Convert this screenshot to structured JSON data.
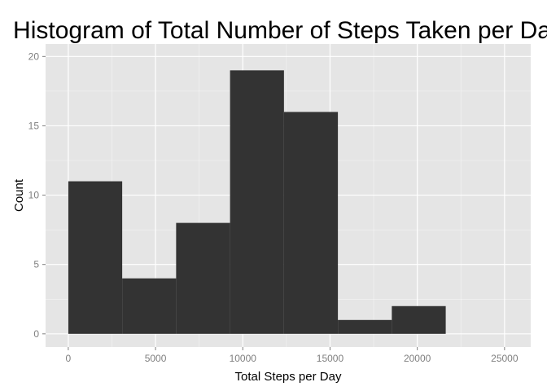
{
  "chart_data": {
    "type": "bar",
    "subtype": "histogram",
    "title": "Histogram of Total Number of Steps Taken per Day",
    "xlabel": "Total Steps per Day",
    "ylabel": "Count",
    "bins": [
      {
        "x0": 0,
        "x1": 3090,
        "count": 11
      },
      {
        "x0": 3090,
        "x1": 6180,
        "count": 4
      },
      {
        "x0": 6180,
        "x1": 9270,
        "count": 8
      },
      {
        "x0": 9270,
        "x1": 12360,
        "count": 19
      },
      {
        "x0": 12360,
        "x1": 15450,
        "count": 16
      },
      {
        "x0": 15450,
        "x1": 18540,
        "count": 1
      },
      {
        "x0": 18540,
        "x1": 21630,
        "count": 2
      }
    ],
    "xlim": [
      -1300,
      26500
    ],
    "ylim": [
      -0.95,
      20.9
    ],
    "x_ticks": [
      0,
      5000,
      10000,
      15000,
      20000,
      25000
    ],
    "y_ticks": [
      0,
      5,
      10,
      15,
      20
    ],
    "x_tick_labels": [
      "0",
      "5000",
      "10000",
      "15000",
      "20000",
      "25000"
    ],
    "y_tick_labels": [
      "0",
      "5",
      "10",
      "15",
      "20"
    ],
    "grid": true,
    "bar_color": "#333333",
    "panel_color": "#e5e5e5",
    "grid_color": "#ffffff"
  }
}
